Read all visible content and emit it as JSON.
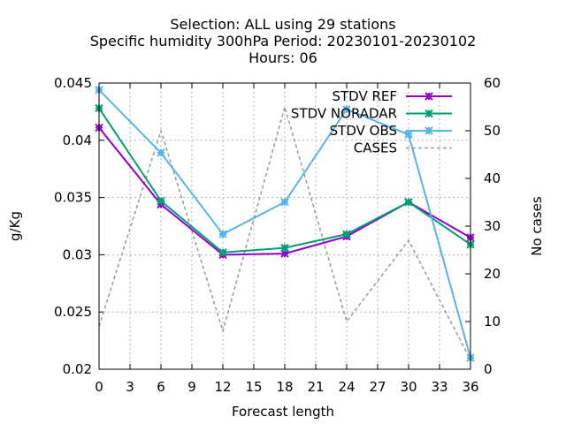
{
  "chart_data": {
    "type": "line",
    "title_lines": [
      "Selection: ALL using    29 stations",
      "Specific humidity 300hPa   Period: 20230101-20230102",
      "Hours:  06"
    ],
    "xlabel": "Forecast length",
    "ylabel": "g/Kg",
    "y2label": "No cases",
    "xlim": [
      0,
      36
    ],
    "ylim": [
      0.02,
      0.045
    ],
    "y2lim": [
      0,
      60
    ],
    "x_ticks": [
      0,
      3,
      6,
      9,
      12,
      15,
      18,
      21,
      24,
      27,
      30,
      33,
      36
    ],
    "y_ticks": [
      "0.02",
      "0.025",
      "0.03",
      "0.035",
      "0.04",
      "0.045"
    ],
    "y2_ticks": [
      0,
      10,
      20,
      30,
      40,
      50,
      60
    ],
    "grid": true,
    "legend_position": "top-right",
    "x": [
      0,
      6,
      12,
      18,
      24,
      30,
      36
    ],
    "series": [
      {
        "name": "STDV REF",
        "axis": "y",
        "color": "#9400d3",
        "marker": "x",
        "dashed": false,
        "values": [
          0.0411,
          0.0344,
          0.03,
          0.0301,
          0.0316,
          0.0346,
          0.0315
        ]
      },
      {
        "name": "STDV NORADAR",
        "axis": "y",
        "color": "#009e73",
        "marker": "x",
        "dashed": false,
        "values": [
          0.0428,
          0.0347,
          0.0302,
          0.0306,
          0.0318,
          0.0346,
          0.0309
        ]
      },
      {
        "name": "STDV OBS",
        "axis": "y",
        "color": "#56b4e9",
        "marker": "x",
        "dashed": false,
        "values": [
          0.0444,
          0.0389,
          0.0318,
          0.0346,
          0.0427,
          0.0405,
          0.021
        ]
      },
      {
        "name": "CASES",
        "axis": "y2",
        "color": "#999999",
        "marker": "none",
        "dashed": true,
        "values": [
          9,
          50,
          8,
          55,
          10,
          27,
          2
        ]
      }
    ]
  }
}
